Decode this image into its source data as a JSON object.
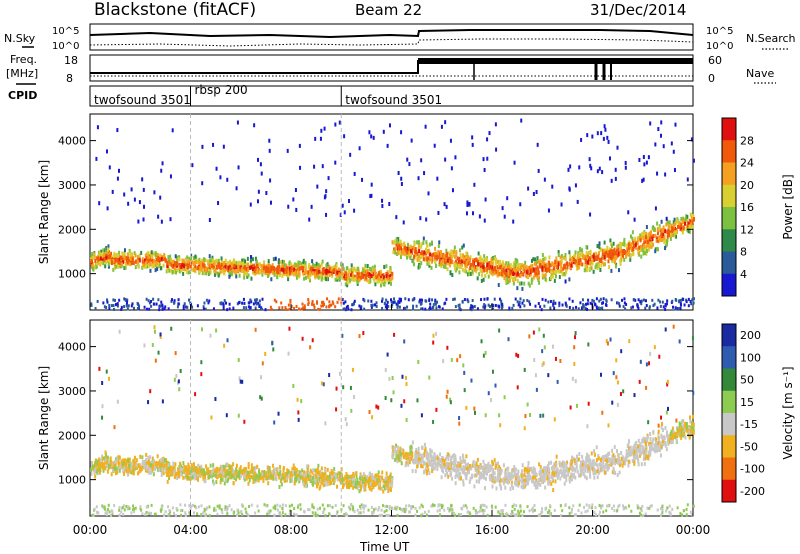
{
  "header": {
    "radar": "Blackstone (fitACF)",
    "beam": "Beam 22",
    "date": "31/Dec/2014"
  },
  "side_labels": {
    "nsky": "N.Sky",
    "freq_top": "Freq.",
    "freq_unit": "[MHz]",
    "cpid": "CPID",
    "nsearch": "N.Search",
    "nave": "Nave"
  },
  "summary_axes": {
    "noise_ticks": [
      "10^5",
      "10^0"
    ],
    "freq_ticks": [
      "18",
      "8"
    ],
    "nave_ticks": [
      "60",
      "0"
    ]
  },
  "cpid_segments": [
    {
      "label": "twofsound 3501",
      "start_h": 0.0,
      "end_h": 4.0
    },
    {
      "label": "rbsp 200",
      "start_h": 4.0,
      "end_h": 10.0
    },
    {
      "label": "twofsound 3501",
      "start_h": 10.0,
      "end_h": 24.0
    }
  ],
  "x_axis": {
    "title": "Time UT",
    "ticks": [
      "00:00",
      "04:00",
      "08:00",
      "12:00",
      "16:00",
      "20:00",
      "00:00"
    ],
    "tick_hours": [
      0,
      4,
      8,
      12,
      16,
      20,
      24
    ],
    "range_h": [
      0,
      24
    ]
  },
  "chart_data": [
    {
      "type": "heatmap",
      "name": "power",
      "ylabel": "Slant Range [km]",
      "yticks": [
        1000,
        2000,
        3000,
        4000
      ],
      "ylim": [
        180,
        4600
      ],
      "colorbar": {
        "label": "Power [dB]",
        "ticks": [
          "28",
          "24",
          "20",
          "16",
          "12",
          "8",
          "4"
        ],
        "colors": [
          "#e01010",
          "#f05a0a",
          "#f5a020",
          "#d8d030",
          "#7cc040",
          "#2e8a48",
          "#2a5a9a",
          "#1818d0"
        ]
      }
    },
    {
      "type": "heatmap",
      "name": "velocity",
      "ylabel": "Slant Range [km]",
      "yticks": [
        1000,
        2000,
        3000,
        4000
      ],
      "ylim": [
        180,
        4600
      ],
      "colorbar": {
        "label": "Velocity [m s⁻¹]",
        "ticks": [
          "200",
          "100",
          "50",
          "15",
          "-15",
          "-50",
          "-100",
          "-200"
        ],
        "colors": [
          "#1a2aa0",
          "#2e5cb0",
          "#33883a",
          "#8ccc50",
          "#c8c8c8",
          "#f0b020",
          "#f07010",
          "#e01010"
        ]
      }
    }
  ]
}
